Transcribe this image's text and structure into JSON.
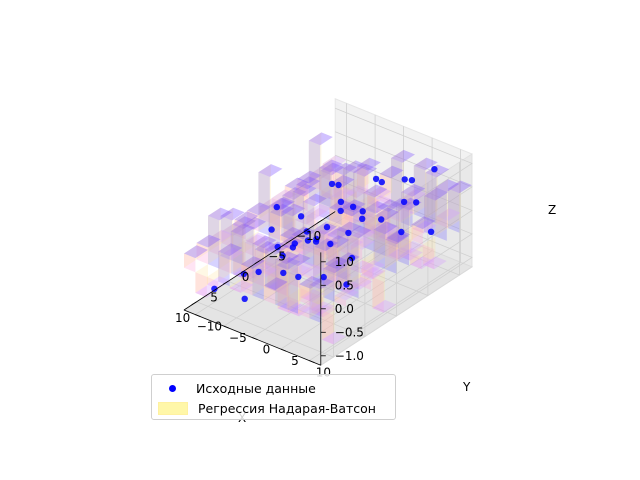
{
  "chart_data": {
    "type": "3d-scatter-surface",
    "title": "",
    "xlabel": "X",
    "ylabel": "Y",
    "zlabel": "Z",
    "xlim": [
      -12,
      12
    ],
    "ylim": [
      -12,
      12
    ],
    "zlim": [
      -1.2,
      1.2
    ],
    "x_ticks": [
      "−10",
      "−5",
      "0",
      "5",
      "10"
    ],
    "y_ticks": [
      "−10",
      "−5",
      "0",
      "5",
      "10"
    ],
    "z_ticks": [
      "−1.0",
      "−0.5",
      "0.0",
      "0.5",
      "1.0"
    ],
    "x_tick_values": [
      -10,
      -5,
      0,
      5,
      10
    ],
    "y_tick_values": [
      -10,
      -5,
      0,
      5,
      10
    ],
    "z_tick_values": [
      -1.0,
      -0.5,
      0.0,
      0.5,
      1.0
    ],
    "grid": true,
    "legend_position": "lower left",
    "series": [
      {
        "name": "Исходные данные",
        "kind": "scatter",
        "color": "#0000ff",
        "points": [
          [
            -9.2,
            8.5,
            0.95
          ],
          [
            -7.8,
            6.1,
            0.72
          ],
          [
            -10.1,
            2.3,
            0.35
          ],
          [
            -8.4,
            -3.2,
            -0.45
          ],
          [
            -6.9,
            -7.8,
            -0.88
          ],
          [
            -5.5,
            9.4,
            0.61
          ],
          [
            -4.2,
            4.8,
            0.93
          ],
          [
            -3.1,
            -1.2,
            0.12
          ],
          [
            -2.6,
            -6.4,
            -0.72
          ],
          [
            -1.3,
            7.9,
            0.54
          ],
          [
            0.4,
            2.7,
            0.81
          ],
          [
            1.2,
            -4.5,
            -0.36
          ],
          [
            2.8,
            9.1,
            0.97
          ],
          [
            3.5,
            -8.3,
            -0.95
          ],
          [
            4.7,
            5.6,
            0.43
          ],
          [
            5.2,
            -2.1,
            -0.52
          ],
          [
            6.3,
            0.8,
            0.26
          ],
          [
            7.1,
            -6.9,
            -0.61
          ],
          [
            8.4,
            7.2,
            0.88
          ],
          [
            9.6,
            -4.0,
            -0.78
          ],
          [
            10.2,
            3.3,
            0.55
          ],
          [
            -9.9,
            -9.1,
            -0.31
          ],
          [
            -0.7,
            -9.6,
            -0.85
          ],
          [
            2.1,
            0.3,
            0.05
          ],
          [
            -6.1,
            1.7,
            0.68
          ],
          [
            5.9,
            10.1,
            0.99
          ],
          [
            8.8,
            -10.2,
            -0.94
          ],
          [
            -4.8,
            -4.6,
            0.38
          ],
          [
            0.9,
            5.2,
            -0.22
          ],
          [
            -8.1,
            4.4,
            0.15
          ],
          [
            3.9,
            -0.9,
            -0.66
          ],
          [
            6.8,
            3.8,
            0.79
          ],
          [
            -2.0,
            2.2,
            0.47
          ],
          [
            -5.3,
            7.0,
            -0.12
          ],
          [
            9.1,
            9.3,
            0.29
          ],
          [
            -10.4,
            6.6,
            -0.58
          ],
          [
            1.7,
            -7.1,
            0.33
          ],
          [
            -3.7,
            -8.8,
            -0.42
          ],
          [
            7.6,
            -1.5,
            0.64
          ],
          [
            4.3,
            8.0,
            -0.35
          ]
        ]
      },
      {
        "name": "Регрессия Надарая-Ватсон",
        "kind": "surface",
        "color": "#fff7a8"
      }
    ]
  },
  "legend": {
    "item1": "Исходные данные",
    "item2": "Регрессия Надарая-Ватсон"
  }
}
